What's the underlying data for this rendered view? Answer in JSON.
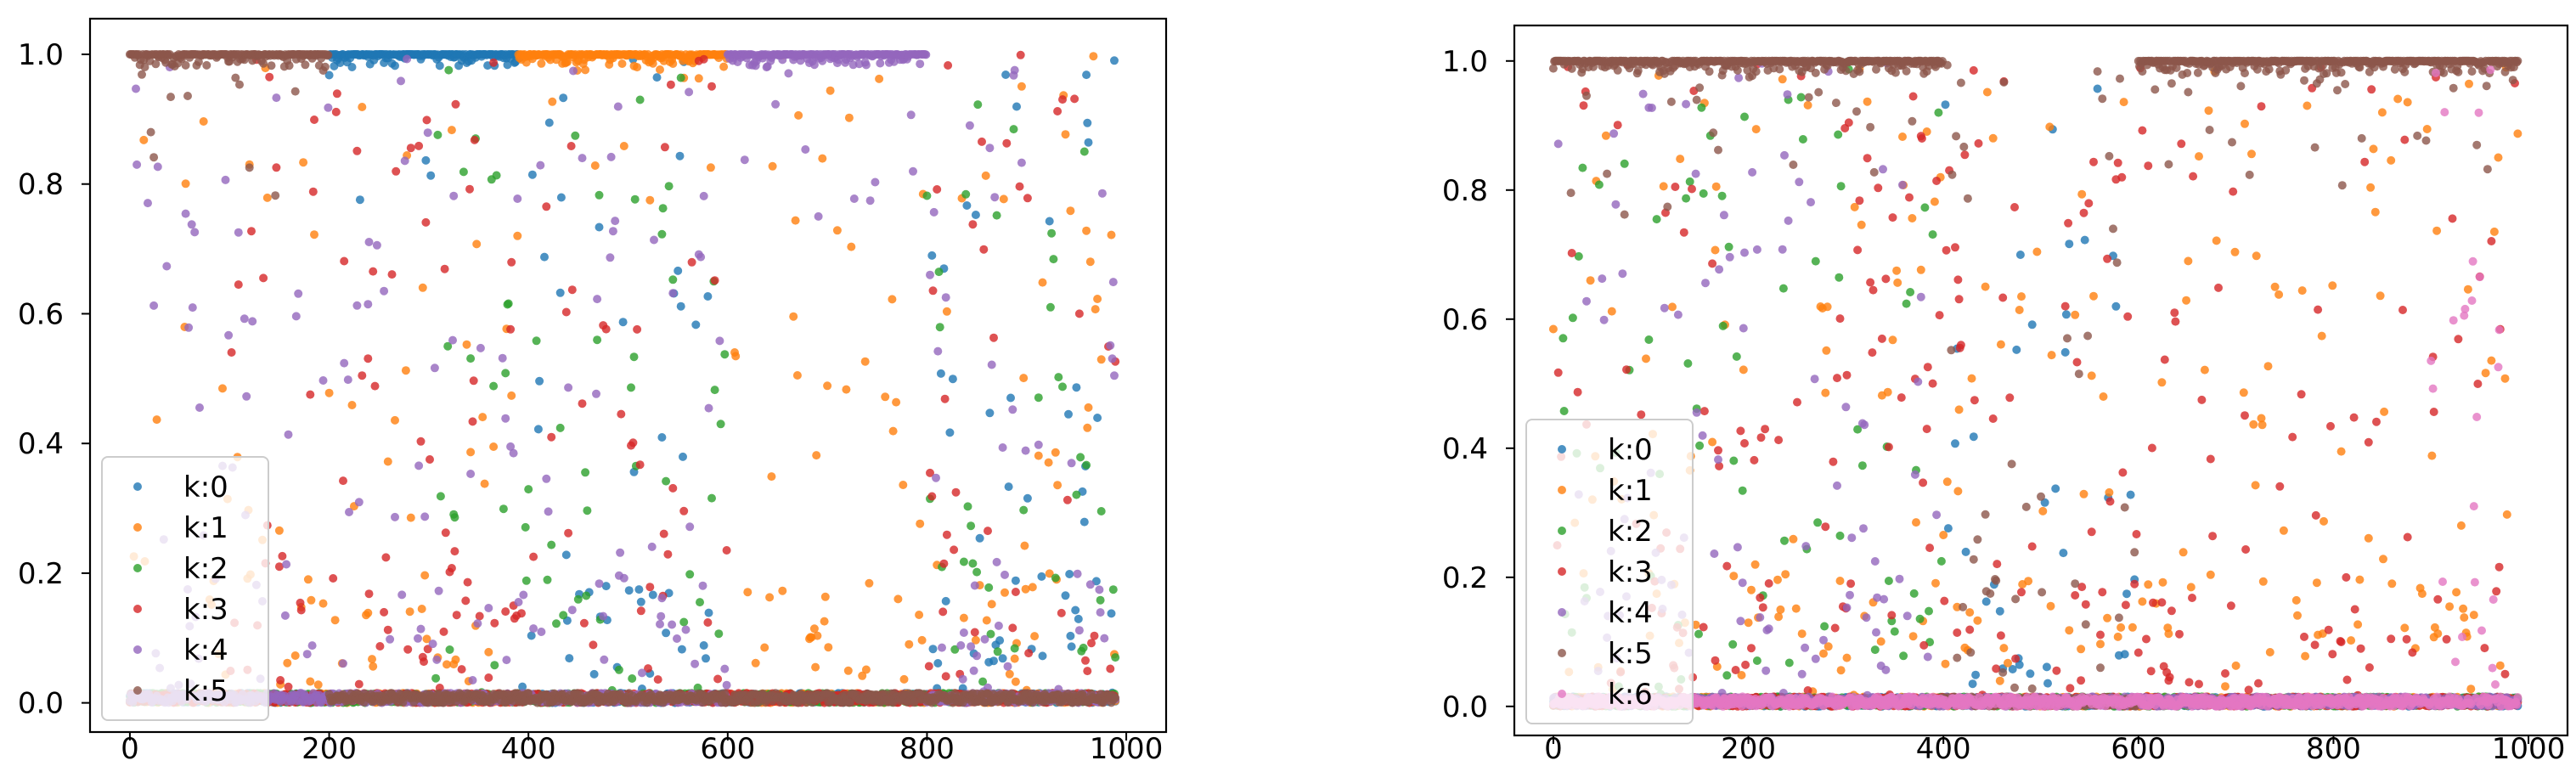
{
  "chart_data": [
    {
      "type": "scatter",
      "title": "",
      "xlabel": "",
      "ylabel": "",
      "xlim": [
        -40,
        1040
      ],
      "ylim": [
        -0.045,
        1.055
      ],
      "x_ticks": [
        0,
        200,
        400,
        600,
        800,
        1000
      ],
      "y_ticks": [
        0.0,
        0.2,
        0.4,
        0.6,
        0.8,
        1.0
      ],
      "x_tick_labels": [
        "0",
        "200",
        "400",
        "600",
        "800",
        "1000"
      ],
      "y_tick_labels": [
        "0.0",
        "0.2",
        "0.4",
        "0.6",
        "0.8",
        "1.0"
      ],
      "legend": {
        "position": "lower-left",
        "labels": [
          "k:0",
          "k:1",
          "k:2",
          "k:3",
          "k:4",
          "k:5"
        ]
      },
      "colors": [
        "#1f77b4",
        "#ff7f0e",
        "#2ca02c",
        "#d62728",
        "#9467bd",
        "#8c564b"
      ],
      "series": [
        {
          "name": "k:0",
          "high_ranges": [
            [
              200,
              390
            ]
          ],
          "mid_ranges": [
            [
              200,
              600
            ],
            [
              800,
              990
            ]
          ],
          "high_level": 1.0
        },
        {
          "name": "k:1",
          "high_ranges": [
            [
              390,
              600
            ]
          ],
          "mid_ranges": [
            [
              0,
              990
            ]
          ],
          "high_level": 1.0
        },
        {
          "name": "k:2",
          "high_ranges": [],
          "mid_ranges": [
            [
              300,
              600
            ],
            [
              800,
              990
            ]
          ],
          "high_level": 1.0
        },
        {
          "name": "k:3",
          "high_ranges": [],
          "mid_ranges": [
            [
              100,
              600
            ],
            [
              800,
              990
            ]
          ],
          "high_level": 1.0
        },
        {
          "name": "k:4",
          "high_ranges": [
            [
              600,
              800
            ]
          ],
          "mid_ranges": [
            [
              0,
              990
            ]
          ],
          "high_level": 1.0
        },
        {
          "name": "k:5",
          "high_ranges": [
            [
              0,
              200
            ]
          ],
          "mid_ranges": [
            [
              0,
              200
            ]
          ],
          "high_level": 1.0
        }
      ],
      "points_per_x": 1,
      "x_count": 990
    },
    {
      "type": "scatter",
      "title": "",
      "xlabel": "",
      "ylabel": "",
      "xlim": [
        -40,
        1040
      ],
      "ylim": [
        -0.045,
        1.055
      ],
      "x_ticks": [
        0,
        200,
        400,
        600,
        800,
        1000
      ],
      "y_ticks": [
        0.0,
        0.2,
        0.4,
        0.6,
        0.8,
        1.0
      ],
      "x_tick_labels": [
        "0",
        "200",
        "400",
        "600",
        "800",
        "1000"
      ],
      "y_tick_labels": [
        "0.0",
        "0.2",
        "0.4",
        "0.6",
        "0.8",
        "1.0"
      ],
      "legend": {
        "position": "lower-left",
        "labels": [
          "k:0",
          "k:1",
          "k:2",
          "k:3",
          "k:4",
          "k:5",
          "k:6"
        ]
      },
      "colors": [
        "#1f77b4",
        "#ff7f0e",
        "#2ca02c",
        "#d62728",
        "#9467bd",
        "#8c564b",
        "#e377c2"
      ],
      "series": [
        {
          "name": "k:0",
          "high_ranges": [],
          "mid_ranges": [
            [
              400,
              600
            ]
          ],
          "high_level": 1.0
        },
        {
          "name": "k:1",
          "high_ranges": [],
          "mid_ranges": [
            [
              0,
              990
            ]
          ],
          "high_level": 1.0
        },
        {
          "name": "k:2",
          "high_ranges": [],
          "mid_ranges": [
            [
              0,
              400
            ]
          ],
          "high_level": 1.0
        },
        {
          "name": "k:3",
          "high_ranges": [],
          "mid_ranges": [
            [
              0,
              990
            ]
          ],
          "high_level": 1.0
        },
        {
          "name": "k:4",
          "high_ranges": [],
          "mid_ranges": [
            [
              0,
              400
            ]
          ],
          "high_level": 1.0
        },
        {
          "name": "k:5",
          "high_ranges": [
            [
              0,
              400
            ],
            [
              600,
              990
            ]
          ],
          "mid_ranges": [
            [
              0,
              990
            ]
          ],
          "high_level": 1.0
        },
        {
          "name": "k:6",
          "high_ranges": [],
          "mid_ranges": [
            [
              900,
              990
            ]
          ],
          "high_level": 0.0
        }
      ],
      "points_per_x": 1,
      "x_count": 990
    }
  ]
}
